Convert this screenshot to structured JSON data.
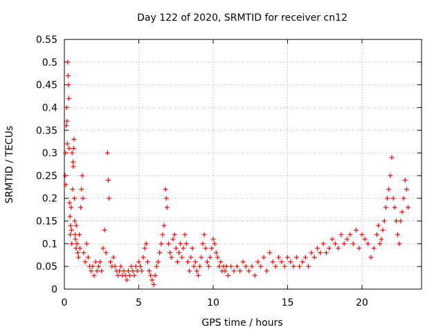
{
  "chart_data": {
    "type": "scatter",
    "title": "Day 122 of 2020, SRMTID for receiver cn12",
    "xlabel": "GPS time / hours",
    "ylabel": "SRMTID / TECUs",
    "xlim": [
      0,
      24
    ],
    "ylim": [
      0,
      0.55
    ],
    "xticks": [
      0,
      5,
      10,
      15,
      20
    ],
    "yticks": [
      0,
      0.05,
      0.1,
      0.15,
      0.2,
      0.25,
      0.3,
      0.35,
      0.4,
      0.45,
      0.5,
      0.55
    ],
    "grid": true,
    "marker": "+",
    "color": "#ff0000",
    "series": [
      {
        "name": "SRMTID",
        "points": [
          [
            0.05,
            0.25
          ],
          [
            0.08,
            0.3
          ],
          [
            0.1,
            0.23
          ],
          [
            0.12,
            0.36
          ],
          [
            0.15,
            0.4
          ],
          [
            0.18,
            0.37
          ],
          [
            0.2,
            0.32
          ],
          [
            0.22,
            0.5
          ],
          [
            0.25,
            0.47
          ],
          [
            0.28,
            0.45
          ],
          [
            0.3,
            0.42
          ],
          [
            0.32,
            0.31
          ],
          [
            0.35,
            0.19
          ],
          [
            0.38,
            0.16
          ],
          [
            0.4,
            0.12
          ],
          [
            0.42,
            0.14
          ],
          [
            0.45,
            0.18
          ],
          [
            0.48,
            0.13
          ],
          [
            0.5,
            0.1
          ],
          [
            0.52,
            0.3
          ],
          [
            0.55,
            0.22
          ],
          [
            0.58,
            0.28
          ],
          [
            0.6,
            0.27
          ],
          [
            0.62,
            0.31
          ],
          [
            0.65,
            0.33
          ],
          [
            0.68,
            0.2
          ],
          [
            0.7,
            0.15
          ],
          [
            0.72,
            0.12
          ],
          [
            0.75,
            0.11
          ],
          [
            0.78,
            0.09
          ],
          [
            0.8,
            0.14
          ],
          [
            0.85,
            0.1
          ],
          [
            0.9,
            0.08
          ],
          [
            0.95,
            0.07
          ],
          [
            1.0,
            0.12
          ],
          [
            1.05,
            0.09
          ],
          [
            1.1,
            0.18
          ],
          [
            1.15,
            0.22
          ],
          [
            1.2,
            0.25
          ],
          [
            1.25,
            0.2
          ],
          [
            1.3,
            0.08
          ],
          [
            1.4,
            0.06
          ],
          [
            1.5,
            0.1
          ],
          [
            1.6,
            0.07
          ],
          [
            1.7,
            0.05
          ],
          [
            1.8,
            0.04
          ],
          [
            1.9,
            0.05
          ],
          [
            2.0,
            0.03
          ],
          [
            2.1,
            0.06
          ],
          [
            2.2,
            0.04
          ],
          [
            2.3,
            0.05
          ],
          [
            2.4,
            0.06
          ],
          [
            2.5,
            0.04
          ],
          [
            2.6,
            0.09
          ],
          [
            2.7,
            0.13
          ],
          [
            2.8,
            0.08
          ],
          [
            2.9,
            0.3
          ],
          [
            2.95,
            0.24
          ],
          [
            3.0,
            0.2
          ],
          [
            3.1,
            0.06
          ],
          [
            3.2,
            0.05
          ],
          [
            3.3,
            0.07
          ],
          [
            3.4,
            0.05
          ],
          [
            3.5,
            0.04
          ],
          [
            3.6,
            0.03
          ],
          [
            3.7,
            0.04
          ],
          [
            3.8,
            0.05
          ],
          [
            3.9,
            0.03
          ],
          [
            4.0,
            0.04
          ],
          [
            4.1,
            0.03
          ],
          [
            4.2,
            0.02
          ],
          [
            4.3,
            0.04
          ],
          [
            4.4,
            0.03
          ],
          [
            4.5,
            0.05
          ],
          [
            4.6,
            0.04
          ],
          [
            4.7,
            0.03
          ],
          [
            4.8,
            0.05
          ],
          [
            4.9,
            0.04
          ],
          [
            5.0,
            0.06
          ],
          [
            5.1,
            0.05
          ],
          [
            5.2,
            0.04
          ],
          [
            5.3,
            0.07
          ],
          [
            5.4,
            0.09
          ],
          [
            5.5,
            0.1
          ],
          [
            5.6,
            0.06
          ],
          [
            5.7,
            0.04
          ],
          [
            5.8,
            0.03
          ],
          [
            5.9,
            0.02
          ],
          [
            6.0,
            0.01
          ],
          [
            6.1,
            0.03
          ],
          [
            6.2,
            0.05
          ],
          [
            6.3,
            0.06
          ],
          [
            6.4,
            0.08
          ],
          [
            6.5,
            0.1
          ],
          [
            6.6,
            0.12
          ],
          [
            6.7,
            0.14
          ],
          [
            6.8,
            0.22
          ],
          [
            6.85,
            0.2
          ],
          [
            6.9,
            0.18
          ],
          [
            7.0,
            0.1
          ],
          [
            7.1,
            0.08
          ],
          [
            7.2,
            0.07
          ],
          [
            7.3,
            0.11
          ],
          [
            7.4,
            0.12
          ],
          [
            7.5,
            0.09
          ],
          [
            7.6,
            0.06
          ],
          [
            7.7,
            0.08
          ],
          [
            7.8,
            0.1
          ],
          [
            7.9,
            0.07
          ],
          [
            8.0,
            0.09
          ],
          [
            8.1,
            0.12
          ],
          [
            8.2,
            0.1
          ],
          [
            8.3,
            0.06
          ],
          [
            8.4,
            0.04
          ],
          [
            8.5,
            0.07
          ],
          [
            8.6,
            0.09
          ],
          [
            8.7,
            0.05
          ],
          [
            8.8,
            0.06
          ],
          [
            8.9,
            0.04
          ],
          [
            9.0,
            0.03
          ],
          [
            9.1,
            0.05
          ],
          [
            9.2,
            0.07
          ],
          [
            9.3,
            0.1
          ],
          [
            9.4,
            0.12
          ],
          [
            9.5,
            0.09
          ],
          [
            9.6,
            0.06
          ],
          [
            9.7,
            0.05
          ],
          [
            9.8,
            0.07
          ],
          [
            9.9,
            0.09
          ],
          [
            10.0,
            0.11
          ],
          [
            10.1,
            0.1
          ],
          [
            10.2,
            0.08
          ],
          [
            10.3,
            0.07
          ],
          [
            10.4,
            0.05
          ],
          [
            10.5,
            0.06
          ],
          [
            10.6,
            0.04
          ],
          [
            10.7,
            0.05
          ],
          [
            10.8,
            0.04
          ],
          [
            10.9,
            0.05
          ],
          [
            11.0,
            0.03
          ],
          [
            11.2,
            0.05
          ],
          [
            11.4,
            0.04
          ],
          [
            11.6,
            0.05
          ],
          [
            11.8,
            0.04
          ],
          [
            12.0,
            0.06
          ],
          [
            12.2,
            0.05
          ],
          [
            12.4,
            0.04
          ],
          [
            12.6,
            0.05
          ],
          [
            12.8,
            0.03
          ],
          [
            13.0,
            0.06
          ],
          [
            13.2,
            0.05
          ],
          [
            13.4,
            0.07
          ],
          [
            13.6,
            0.04
          ],
          [
            13.8,
            0.08
          ],
          [
            14.0,
            0.06
          ],
          [
            14.2,
            0.05
          ],
          [
            14.4,
            0.07
          ],
          [
            14.6,
            0.06
          ],
          [
            14.8,
            0.05
          ],
          [
            15.0,
            0.07
          ],
          [
            15.2,
            0.06
          ],
          [
            15.4,
            0.05
          ],
          [
            15.6,
            0.07
          ],
          [
            15.8,
            0.05
          ],
          [
            16.0,
            0.06
          ],
          [
            16.2,
            0.07
          ],
          [
            16.4,
            0.05
          ],
          [
            16.6,
            0.08
          ],
          [
            16.8,
            0.07
          ],
          [
            17.0,
            0.09
          ],
          [
            17.2,
            0.08
          ],
          [
            17.4,
            0.1
          ],
          [
            17.6,
            0.08
          ],
          [
            17.8,
            0.09
          ],
          [
            18.0,
            0.11
          ],
          [
            18.2,
            0.1
          ],
          [
            18.4,
            0.09
          ],
          [
            18.6,
            0.12
          ],
          [
            18.8,
            0.1
          ],
          [
            19.0,
            0.11
          ],
          [
            19.2,
            0.12
          ],
          [
            19.4,
            0.1
          ],
          [
            19.6,
            0.13
          ],
          [
            19.8,
            0.09
          ],
          [
            20.0,
            0.12
          ],
          [
            20.2,
            0.11
          ],
          [
            20.4,
            0.1
          ],
          [
            20.6,
            0.07
          ],
          [
            20.8,
            0.09
          ],
          [
            21.0,
            0.12
          ],
          [
            21.1,
            0.14
          ],
          [
            21.2,
            0.1
          ],
          [
            21.3,
            0.11
          ],
          [
            21.4,
            0.13
          ],
          [
            21.5,
            0.15
          ],
          [
            21.6,
            0.18
          ],
          [
            21.7,
            0.2
          ],
          [
            21.8,
            0.22
          ],
          [
            21.9,
            0.25
          ],
          [
            22.0,
            0.29
          ],
          [
            22.1,
            0.2
          ],
          [
            22.2,
            0.18
          ],
          [
            22.3,
            0.15
          ],
          [
            22.4,
            0.12
          ],
          [
            22.5,
            0.1
          ],
          [
            22.6,
            0.15
          ],
          [
            22.7,
            0.17
          ],
          [
            22.8,
            0.2
          ],
          [
            22.9,
            0.24
          ],
          [
            23.0,
            0.22
          ],
          [
            23.1,
            0.18
          ]
        ]
      }
    ]
  }
}
